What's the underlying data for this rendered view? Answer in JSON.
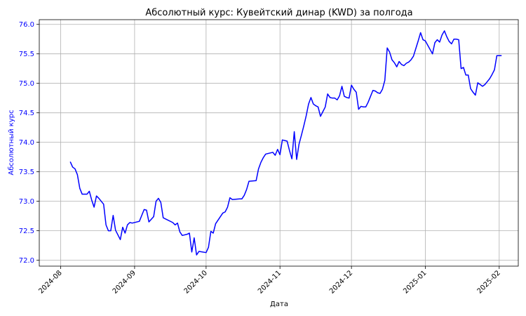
{
  "chart_data": {
    "type": "line",
    "title": "Абсолютный курс: Кувейтский динар (KWD) за полгода",
    "xlabel": "Дата",
    "ylabel": "Абсолютный курс",
    "xlim": [
      "2024-07-23",
      "2025-02-09"
    ],
    "ylim": [
      71.9,
      76.08
    ],
    "grid": true,
    "line_color": "#0000ff",
    "label_color": "#0000ff",
    "yticks": [
      {
        "v": 72.0,
        "label": "72.0"
      },
      {
        "v": 72.5,
        "label": "72.5"
      },
      {
        "v": 73.0,
        "label": "73.0"
      },
      {
        "v": 73.5,
        "label": "73.5"
      },
      {
        "v": 74.0,
        "label": "74.0"
      },
      {
        "v": 74.5,
        "label": "74.5"
      },
      {
        "v": 75.0,
        "label": "75.0"
      },
      {
        "v": 75.5,
        "label": "75.5"
      },
      {
        "v": 76.0,
        "label": "76.0"
      }
    ],
    "xticks": [
      {
        "date": "2024-08-01",
        "label": "2024-08"
      },
      {
        "date": "2024-09-01",
        "label": "2024-09"
      },
      {
        "date": "2024-10-01",
        "label": "2024-10"
      },
      {
        "date": "2024-11-01",
        "label": "2024-11"
      },
      {
        "date": "2024-12-01",
        "label": "2024-12"
      },
      {
        "date": "2025-01-01",
        "label": "2025-01"
      },
      {
        "date": "2025-02-01",
        "label": "2025-02"
      }
    ],
    "series": [
      {
        "x": [
          "2024-08-05",
          "2024-08-06",
          "2024-08-07",
          "2024-08-08",
          "2024-08-09",
          "2024-08-10",
          "2024-08-12",
          "2024-08-13",
          "2024-08-14",
          "2024-08-15",
          "2024-08-16",
          "2024-08-17",
          "2024-08-19",
          "2024-08-20",
          "2024-08-21",
          "2024-08-22",
          "2024-08-23",
          "2024-08-24",
          "2024-08-26",
          "2024-08-27",
          "2024-08-28",
          "2024-08-29",
          "2024-08-30",
          "2024-08-31",
          "2024-09-03",
          "2024-09-04",
          "2024-09-05",
          "2024-09-06",
          "2024-09-07",
          "2024-09-09",
          "2024-09-10",
          "2024-09-11",
          "2024-09-12",
          "2024-09-13",
          "2024-09-14",
          "2024-09-17",
          "2024-09-18",
          "2024-09-19",
          "2024-09-20",
          "2024-09-21",
          "2024-09-23",
          "2024-09-24",
          "2024-09-25",
          "2024-09-26",
          "2024-09-27",
          "2024-09-28",
          "2024-10-01",
          "2024-10-02",
          "2024-10-03",
          "2024-10-04",
          "2024-10-05",
          "2024-10-08",
          "2024-10-09",
          "2024-10-10",
          "2024-10-11",
          "2024-10-12",
          "2024-10-15",
          "2024-10-16",
          "2024-10-17",
          "2024-10-18",
          "2024-10-19",
          "2024-10-22",
          "2024-10-23",
          "2024-10-24",
          "2024-10-25",
          "2024-10-26",
          "2024-10-29",
          "2024-10-30",
          "2024-10-31",
          "2024-11-01",
          "2024-11-02",
          "2024-11-03",
          "2024-11-04",
          "2024-11-05",
          "2024-11-06",
          "2024-11-07",
          "2024-11-08",
          "2024-11-09",
          "2024-11-10",
          "2024-11-11",
          "2024-11-12",
          "2024-11-13",
          "2024-11-14",
          "2024-11-15",
          "2024-11-16",
          "2024-11-17",
          "2024-11-18",
          "2024-11-19",
          "2024-11-20",
          "2024-11-21",
          "2024-11-22",
          "2024-11-23",
          "2024-11-24",
          "2024-11-25",
          "2024-11-26",
          "2024-11-27",
          "2024-11-28",
          "2024-11-29",
          "2024-11-30",
          "2024-12-01",
          "2024-12-02",
          "2024-12-03",
          "2024-12-04",
          "2024-12-05",
          "2024-12-06",
          "2024-12-07",
          "2024-12-08",
          "2024-12-09",
          "2024-12-10",
          "2024-12-11",
          "2024-12-12",
          "2024-12-13",
          "2024-12-14",
          "2024-12-15",
          "2024-12-16",
          "2024-12-17",
          "2024-12-18",
          "2024-12-19",
          "2024-12-20",
          "2024-12-21",
          "2024-12-22",
          "2024-12-23",
          "2024-12-24",
          "2024-12-25",
          "2024-12-26",
          "2024-12-27",
          "2024-12-28",
          "2024-12-29",
          "2024-12-30",
          "2024-12-31",
          "2025-01-01",
          "2025-01-04",
          "2025-01-05",
          "2025-01-06",
          "2025-01-07",
          "2025-01-08",
          "2025-01-09",
          "2025-01-10",
          "2025-01-11",
          "2025-01-12",
          "2025-01-13",
          "2025-01-14",
          "2025-01-15",
          "2025-01-16",
          "2025-01-17",
          "2025-01-18",
          "2025-01-19",
          "2025-01-20",
          "2025-01-21",
          "2025-01-22",
          "2025-01-23",
          "2025-01-24",
          "2025-01-25",
          "2025-01-26",
          "2025-01-27",
          "2025-01-28",
          "2025-01-29",
          "2025-01-30",
          "2025-01-31",
          "2025-02-01",
          "2025-02-02"
        ],
        "y": [
          73.67,
          73.58,
          73.55,
          73.45,
          73.22,
          73.12,
          73.12,
          73.17,
          73.02,
          72.9,
          73.09,
          73.05,
          72.95,
          72.6,
          72.5,
          72.5,
          72.76,
          72.51,
          72.35,
          72.56,
          72.46,
          72.6,
          72.64,
          72.63,
          72.66,
          72.76,
          72.86,
          72.85,
          72.65,
          72.74,
          73.0,
          73.05,
          72.98,
          72.72,
          72.7,
          72.64,
          72.6,
          72.63,
          72.48,
          72.42,
          72.44,
          72.46,
          72.14,
          72.38,
          72.09,
          72.15,
          72.13,
          72.22,
          72.49,
          72.46,
          72.62,
          72.8,
          72.82,
          72.9,
          73.06,
          73.03,
          73.04,
          73.04,
          73.1,
          73.2,
          73.34,
          73.35,
          73.55,
          73.66,
          73.74,
          73.8,
          73.83,
          73.78,
          73.88,
          73.79,
          74.04,
          74.03,
          74.02,
          73.86,
          73.72,
          74.18,
          73.71,
          73.97,
          74.12,
          74.28,
          74.45,
          74.65,
          74.76,
          74.65,
          74.62,
          74.6,
          74.44,
          74.52,
          74.6,
          74.82,
          74.76,
          74.75,
          74.75,
          74.72,
          74.79,
          74.95,
          74.78,
          74.76,
          74.75,
          74.97,
          74.9,
          74.85,
          74.56,
          74.61,
          74.6,
          74.6,
          74.68,
          74.78,
          74.88,
          74.87,
          74.84,
          74.83,
          74.9,
          75.05,
          75.6,
          75.53,
          75.4,
          75.35,
          75.28,
          75.37,
          75.32,
          75.3,
          75.34,
          75.36,
          75.4,
          75.46,
          75.59,
          75.72,
          75.86,
          75.74,
          75.72,
          75.5,
          75.69,
          75.74,
          75.7,
          75.82,
          75.89,
          75.79,
          75.71,
          75.67,
          75.75,
          75.75,
          75.74,
          75.25,
          75.27,
          75.14,
          75.14,
          74.91,
          74.85,
          74.8,
          75.01,
          74.98,
          74.95,
          74.98,
          75.03,
          75.08,
          75.15,
          75.23,
          75.47,
          75.47,
          75.47
        ]
      }
    ]
  }
}
